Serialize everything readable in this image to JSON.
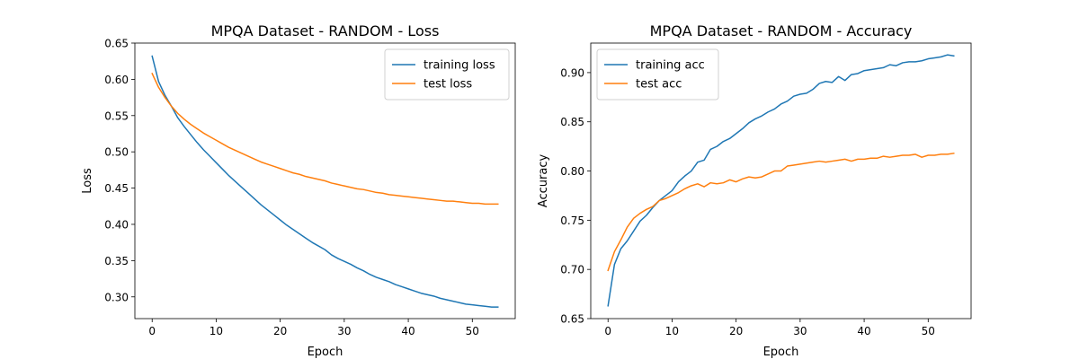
{
  "chart_data": [
    {
      "type": "line",
      "title": "MPQA Dataset - RANDOM - Loss",
      "xlabel": "Epoch",
      "ylabel": "Loss",
      "xlim": [
        -2.7,
        56.7
      ],
      "ylim": [
        0.27,
        0.65
      ],
      "xticks": [
        0,
        10,
        20,
        30,
        40,
        50
      ],
      "yticks": [
        0.3,
        0.35,
        0.4,
        0.45,
        0.5,
        0.55,
        0.6,
        0.65
      ],
      "ytick_labels": [
        "0.30",
        "0.35",
        "0.40",
        "0.45",
        "0.50",
        "0.55",
        "0.60",
        "0.65"
      ],
      "grid": false,
      "legend": "upper-right",
      "series": [
        {
          "name": "training loss",
          "color": "#1f77b4",
          "values": [
            0.632,
            0.597,
            0.578,
            0.563,
            0.547,
            0.535,
            0.524,
            0.513,
            0.503,
            0.494,
            0.485,
            0.476,
            0.467,
            0.459,
            0.451,
            0.443,
            0.435,
            0.427,
            0.42,
            0.413,
            0.406,
            0.399,
            0.393,
            0.387,
            0.381,
            0.375,
            0.37,
            0.365,
            0.358,
            0.353,
            0.349,
            0.345,
            0.34,
            0.336,
            0.331,
            0.327,
            0.324,
            0.321,
            0.317,
            0.314,
            0.311,
            0.308,
            0.305,
            0.303,
            0.301,
            0.298,
            0.296,
            0.294,
            0.292,
            0.29,
            0.289,
            0.288,
            0.287,
            0.286,
            0.286
          ]
        },
        {
          "name": "test loss",
          "color": "#ff7f0e",
          "values": [
            0.608,
            0.589,
            0.575,
            0.563,
            0.553,
            0.545,
            0.538,
            0.532,
            0.526,
            0.521,
            0.516,
            0.511,
            0.506,
            0.502,
            0.498,
            0.494,
            0.49,
            0.486,
            0.483,
            0.48,
            0.477,
            0.474,
            0.471,
            0.469,
            0.466,
            0.464,
            0.462,
            0.46,
            0.457,
            0.455,
            0.453,
            0.451,
            0.449,
            0.448,
            0.446,
            0.444,
            0.443,
            0.441,
            0.44,
            0.439,
            0.438,
            0.437,
            0.436,
            0.435,
            0.434,
            0.433,
            0.432,
            0.432,
            0.431,
            0.43,
            0.429,
            0.429,
            0.428,
            0.428,
            0.428
          ]
        }
      ]
    },
    {
      "type": "line",
      "title": "MPQA Dataset - RANDOM - Accuracy",
      "xlabel": "Epoch",
      "ylabel": "Accuracy",
      "xlim": [
        -2.7,
        56.7
      ],
      "ylim": [
        0.65,
        0.93
      ],
      "xticks": [
        0,
        10,
        20,
        30,
        40,
        50
      ],
      "yticks": [
        0.65,
        0.7,
        0.75,
        0.8,
        0.85,
        0.9
      ],
      "ytick_labels": [
        "0.65",
        "0.70",
        "0.75",
        "0.80",
        "0.85",
        "0.90"
      ],
      "grid": false,
      "legend": "upper-left",
      "series": [
        {
          "name": "training acc",
          "color": "#1f77b4",
          "values": [
            0.663,
            0.705,
            0.721,
            0.729,
            0.739,
            0.749,
            0.755,
            0.763,
            0.77,
            0.775,
            0.78,
            0.789,
            0.795,
            0.8,
            0.809,
            0.811,
            0.822,
            0.825,
            0.83,
            0.833,
            0.838,
            0.843,
            0.849,
            0.853,
            0.856,
            0.86,
            0.863,
            0.868,
            0.871,
            0.876,
            0.878,
            0.879,
            0.883,
            0.889,
            0.891,
            0.89,
            0.896,
            0.892,
            0.898,
            0.899,
            0.902,
            0.903,
            0.904,
            0.905,
            0.908,
            0.907,
            0.91,
            0.911,
            0.911,
            0.912,
            0.914,
            0.915,
            0.916,
            0.918,
            0.917
          ]
        },
        {
          "name": "test acc",
          "color": "#ff7f0e",
          "values": [
            0.699,
            0.718,
            0.73,
            0.743,
            0.752,
            0.757,
            0.761,
            0.764,
            0.77,
            0.772,
            0.775,
            0.778,
            0.782,
            0.785,
            0.787,
            0.784,
            0.788,
            0.787,
            0.788,
            0.791,
            0.789,
            0.792,
            0.794,
            0.793,
            0.794,
            0.797,
            0.8,
            0.8,
            0.805,
            0.806,
            0.807,
            0.808,
            0.809,
            0.81,
            0.809,
            0.81,
            0.811,
            0.812,
            0.81,
            0.812,
            0.812,
            0.813,
            0.813,
            0.815,
            0.814,
            0.815,
            0.816,
            0.816,
            0.817,
            0.814,
            0.816,
            0.816,
            0.817,
            0.817,
            0.818
          ]
        }
      ]
    }
  ]
}
